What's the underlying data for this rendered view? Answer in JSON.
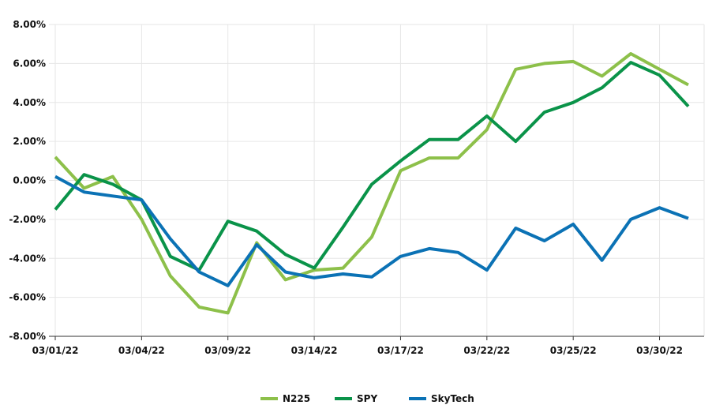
{
  "chart_data": {
    "type": "line",
    "title": "",
    "xlabel": "",
    "ylabel": "",
    "ylim": [
      -8,
      8
    ],
    "yticks": [
      -8,
      -6,
      -4,
      -2,
      0,
      2,
      4,
      6,
      8
    ],
    "ytick_labels": [
      "-8.00%",
      "-6.00%",
      "-4.00%",
      "-2.00%",
      "0.00%",
      "2.00%",
      "4.00%",
      "6.00%",
      "8.00%"
    ],
    "grid": true,
    "legend": "bottom-center",
    "x": [
      "03/01/22",
      "03/02/22",
      "03/03/22",
      "03/04/22",
      "03/07/22",
      "03/08/22",
      "03/09/22",
      "03/10/22",
      "03/11/22",
      "03/14/22",
      "03/15/22",
      "03/16/22",
      "03/17/22",
      "03/18/22",
      "03/21/22",
      "03/22/22",
      "03/23/22",
      "03/24/22",
      "03/25/22",
      "03/28/22",
      "03/29/22",
      "03/30/22",
      "03/31/22"
    ],
    "xtick_labels": [
      "03/01/22",
      "03/04/22",
      "03/09/22",
      "03/14/22",
      "03/17/22",
      "03/22/22",
      "03/25/22",
      "03/30/22"
    ],
    "series": [
      {
        "name": "N225",
        "color": "#8dc04a",
        "values": [
          1.2,
          -0.4,
          0.2,
          -2.0,
          -4.9,
          -6.5,
          -6.8,
          -3.2,
          -5.1,
          -4.6,
          -4.5,
          -2.9,
          0.5,
          1.15,
          1.15,
          2.6,
          5.7,
          6.0,
          6.1,
          5.35,
          6.5,
          5.7,
          4.9
        ]
      },
      {
        "name": "SPY",
        "color": "#0a9349",
        "values": [
          -1.5,
          0.3,
          -0.2,
          -1.0,
          -3.9,
          -4.6,
          -2.1,
          -2.6,
          -3.8,
          -4.5,
          -2.4,
          -0.2,
          1.0,
          2.1,
          2.1,
          3.3,
          2.0,
          3.5,
          4.0,
          4.75,
          6.05,
          5.4,
          3.8
        ]
      },
      {
        "name": "SkyTech",
        "color": "#0b72b5",
        "values": [
          0.2,
          -0.6,
          -0.8,
          -1.0,
          -3.0,
          -4.7,
          -5.4,
          -3.3,
          -4.7,
          -5.0,
          -4.8,
          -4.95,
          -3.9,
          -3.5,
          -3.7,
          -4.6,
          -2.45,
          -3.1,
          -2.25,
          -4.1,
          -2.0,
          -1.4,
          -1.95
        ]
      }
    ]
  }
}
